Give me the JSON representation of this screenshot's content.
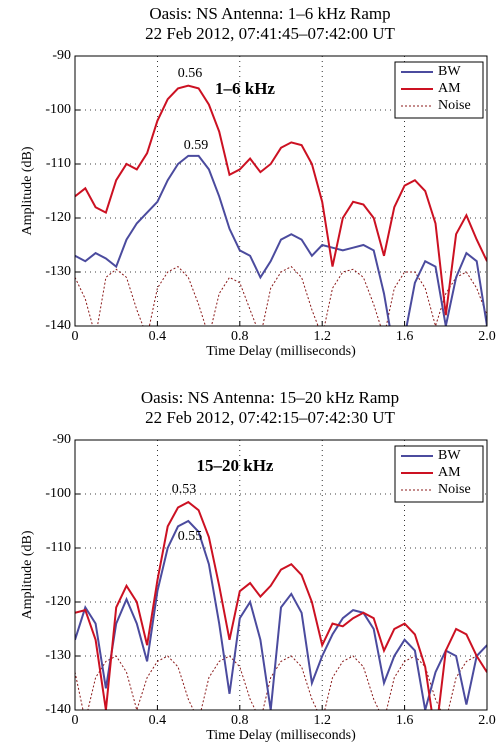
{
  "chart_data": [
    {
      "type": "line",
      "title": "Oasis: NS Antenna: 1–6 kHz Ramp",
      "subtitle": "22 Feb 2012, 07:41:45–07:42:00 UT",
      "xlabel": "Time Delay (milliseconds)",
      "ylabel": "Amplitude (dB)",
      "xlim": [
        0,
        2
      ],
      "ylim": [
        -140,
        -90
      ],
      "xticks": [
        0,
        0.4,
        0.8,
        1.2,
        1.6,
        {
          "value": 2,
          "label": "2.0"
        }
      ],
      "yticks": [
        -140,
        -130,
        -120,
        -110,
        -100,
        -90
      ],
      "grid": true,
      "legend": "upper right",
      "annotations": [
        "1–6 kHz",
        "0.56",
        "0.59"
      ],
      "x": [
        0,
        0.05,
        0.1,
        0.15,
        0.2,
        0.25,
        0.3,
        0.35,
        0.4,
        0.45,
        0.5,
        0.55,
        0.6,
        0.65,
        0.7,
        0.75,
        0.8,
        0.85,
        0.9,
        0.95,
        1.0,
        1.05,
        1.1,
        1.15,
        1.2,
        1.25,
        1.3,
        1.35,
        1.4,
        1.45,
        1.5,
        1.55,
        1.6,
        1.65,
        1.7,
        1.75,
        1.8,
        1.85,
        1.9,
        1.95,
        2.0
      ],
      "series": [
        {
          "name": "BW",
          "color": "#4b4b9e",
          "style": "solid",
          "values": [
            -127,
            -128,
            -126.5,
            -127.5,
            -129,
            -124,
            -121,
            -119,
            -117,
            -113,
            -110,
            -108.5,
            -108.5,
            -111,
            -116,
            -122,
            -126,
            -127,
            -131,
            -128,
            -124,
            -123,
            -124,
            -127,
            -125,
            -125.5,
            -126,
            -125.5,
            -125,
            -126,
            -134,
            -145,
            -142,
            -132,
            -128,
            -129,
            -140,
            -131,
            -126.5,
            -128,
            -140
          ]
        },
        {
          "name": "AM",
          "color": "#cc1122",
          "style": "solid",
          "values": [
            -116,
            -114.5,
            -118,
            -119,
            -113,
            -110,
            -111,
            -108,
            -102,
            -98,
            -96,
            -95.5,
            -96,
            -99,
            -104,
            -112,
            -111,
            -109,
            -111.5,
            -110,
            -107,
            -106,
            -106.5,
            -110,
            -117,
            -129,
            -120,
            -117,
            -117.5,
            -120,
            -127,
            -118,
            -114,
            -113,
            -115,
            -121,
            -138,
            -123,
            -119.5,
            -124,
            -128
          ]
        },
        {
          "name": "Noise",
          "color": "#8b1a1a",
          "style": "dotted",
          "values": [
            -131,
            -135,
            -142,
            -131,
            -129.5,
            -131,
            -137,
            -142,
            -133,
            -130,
            -129,
            -131,
            -136,
            -142,
            -134,
            -131,
            -132,
            -137,
            -142,
            -133,
            -130,
            -129,
            -131,
            -137,
            -142,
            -133,
            -130,
            -129.5,
            -131,
            -136,
            -142,
            -133,
            -130,
            -130,
            -133,
            -140,
            -134,
            -131,
            -130,
            -133,
            -138
          ]
        }
      ]
    },
    {
      "type": "line",
      "title": "Oasis: NS Antenna: 15–20 kHz Ramp",
      "subtitle": "22 Feb 2012, 07:42:15–07:42:30 UT",
      "xlabel": "Time Delay (milliseconds)",
      "ylabel": "Amplitude (dB)",
      "xlim": [
        0,
        2
      ],
      "ylim": [
        -140,
        -90
      ],
      "xticks": [
        0,
        0.4,
        0.8,
        1.2,
        1.6,
        {
          "value": 2,
          "label": "2.0"
        }
      ],
      "yticks": [
        -140,
        -130,
        -120,
        -110,
        -100,
        -90
      ],
      "grid": true,
      "legend": "upper right",
      "annotations": [
        "15–20 kHz",
        "0.53",
        "0.55"
      ],
      "x": [
        0,
        0.05,
        0.1,
        0.15,
        0.2,
        0.25,
        0.3,
        0.35,
        0.4,
        0.45,
        0.5,
        0.55,
        0.6,
        0.65,
        0.7,
        0.75,
        0.8,
        0.85,
        0.9,
        0.95,
        1.0,
        1.05,
        1.1,
        1.15,
        1.2,
        1.25,
        1.3,
        1.35,
        1.4,
        1.45,
        1.5,
        1.55,
        1.6,
        1.65,
        1.7,
        1.75,
        1.8,
        1.85,
        1.9,
        1.95,
        2.0
      ],
      "series": [
        {
          "name": "BW",
          "color": "#4b4b9e",
          "style": "solid",
          "values": [
            -127,
            -121,
            -124,
            -136,
            -124,
            -119.5,
            -124,
            -131,
            -118,
            -110,
            -106,
            -105,
            -107,
            -113,
            -124,
            -137,
            -123,
            -120,
            -127,
            -140,
            -121,
            -118.5,
            -122,
            -135,
            -130,
            -126,
            -123,
            -121.5,
            -122,
            -125,
            -135,
            -130,
            -127,
            -129,
            -140,
            -133,
            -129,
            -130,
            -139,
            -130,
            -128
          ]
        },
        {
          "name": "AM",
          "color": "#cc1122",
          "style": "solid",
          "values": [
            -122,
            -121.5,
            -127,
            -140,
            -121,
            -117,
            -120,
            -128,
            -116,
            -106,
            -102.5,
            -101.5,
            -103,
            -108,
            -117,
            -127,
            -118,
            -116.5,
            -119,
            -117,
            -114,
            -113,
            -115,
            -120,
            -128,
            -124,
            -124.5,
            -123,
            -122,
            -123,
            -129,
            -125,
            -124,
            -126,
            -132,
            -145,
            -129,
            -125,
            -126,
            -130,
            -133
          ]
        },
        {
          "name": "Noise",
          "color": "#8b1a1a",
          "style": "dotted",
          "values": [
            -133,
            -142,
            -134,
            -131,
            -130,
            -133,
            -140,
            -134,
            -131,
            -130,
            -132,
            -138,
            -142,
            -134,
            -131,
            -130,
            -132,
            -138,
            -142,
            -134,
            -131,
            -130,
            -132,
            -138,
            -142,
            -134,
            -131,
            -130,
            -132,
            -138,
            -142,
            -134,
            -131,
            -130,
            -132,
            -138,
            -142,
            -134,
            -131,
            -130,
            -133
          ]
        }
      ]
    }
  ]
}
